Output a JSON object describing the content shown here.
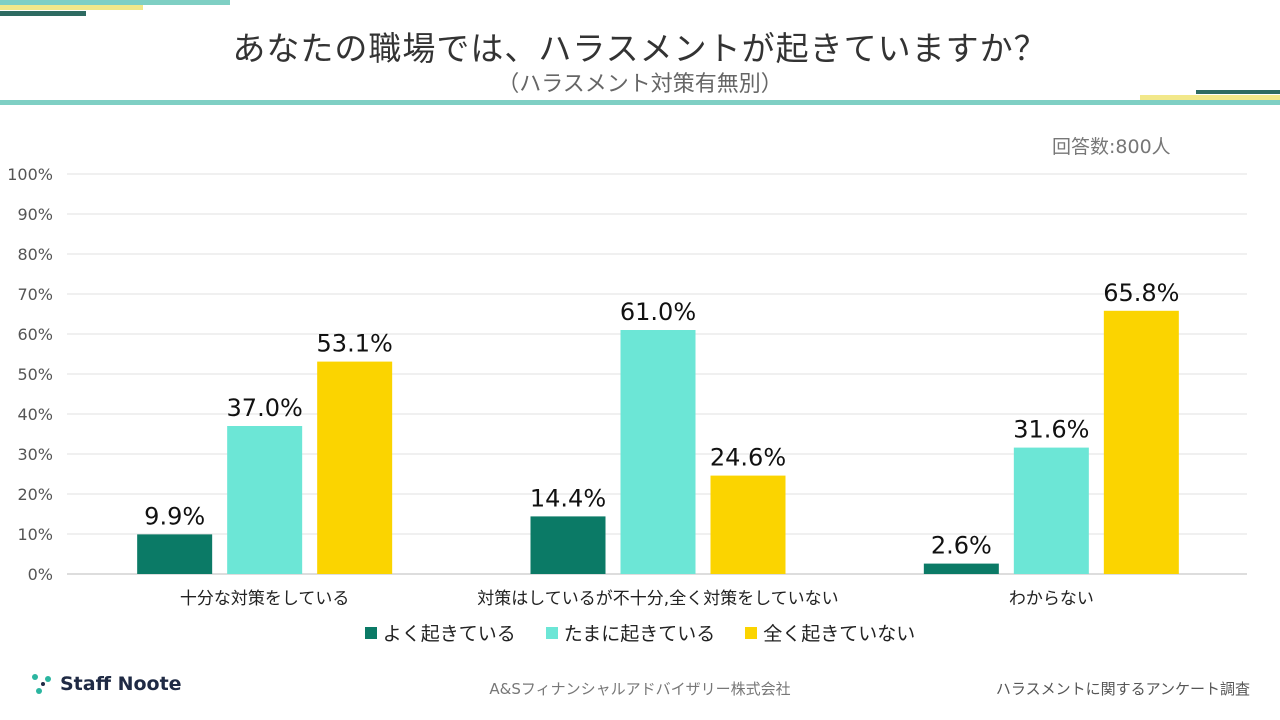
{
  "header": {
    "title": "あなたの職場では、ハラスメントが起きていますか？",
    "subtitle": "（ハラスメント対策有無別）",
    "respondents": "回答数:800人"
  },
  "colors": {
    "often": "#0b7a66",
    "sometimes": "#6ce6d6",
    "never": "#fbd400",
    "teal_line": "#7fcfc4",
    "yellow_line": "#f2e88a",
    "dark_teal": "#2e6b62"
  },
  "chart_data": {
    "type": "bar",
    "categories": [
      "十分な対策をしている",
      "対策はしているが不十分,全く対策をしていない",
      "わからない"
    ],
    "series": [
      {
        "name": "よく起きている",
        "values": [
          9.9,
          14.4,
          2.6
        ],
        "labels": [
          "9.9%",
          "14.4%",
          "2.6%"
        ]
      },
      {
        "name": "たまに起きている",
        "values": [
          37.0,
          61.0,
          31.6
        ],
        "labels": [
          "37.0%",
          "61.0%",
          "31.6%"
        ]
      },
      {
        "name": "全く起きていない",
        "values": [
          53.1,
          24.6,
          65.8
        ],
        "labels": [
          "53.1%",
          "24.6%",
          "65.8%"
        ]
      }
    ],
    "ylim": [
      0,
      100
    ],
    "yticks": [
      "0%",
      "10%",
      "20%",
      "30%",
      "40%",
      "50%",
      "60%",
      "70%",
      "80%",
      "90%",
      "100%"
    ],
    "grid": true,
    "legend_position": "bottom"
  },
  "footer": {
    "logo_text": "Staff Noote",
    "center_text": "A&Sフィナンシャルアドバイザリー株式会社",
    "right_text": "ハラスメントに関するアンケート調査"
  }
}
